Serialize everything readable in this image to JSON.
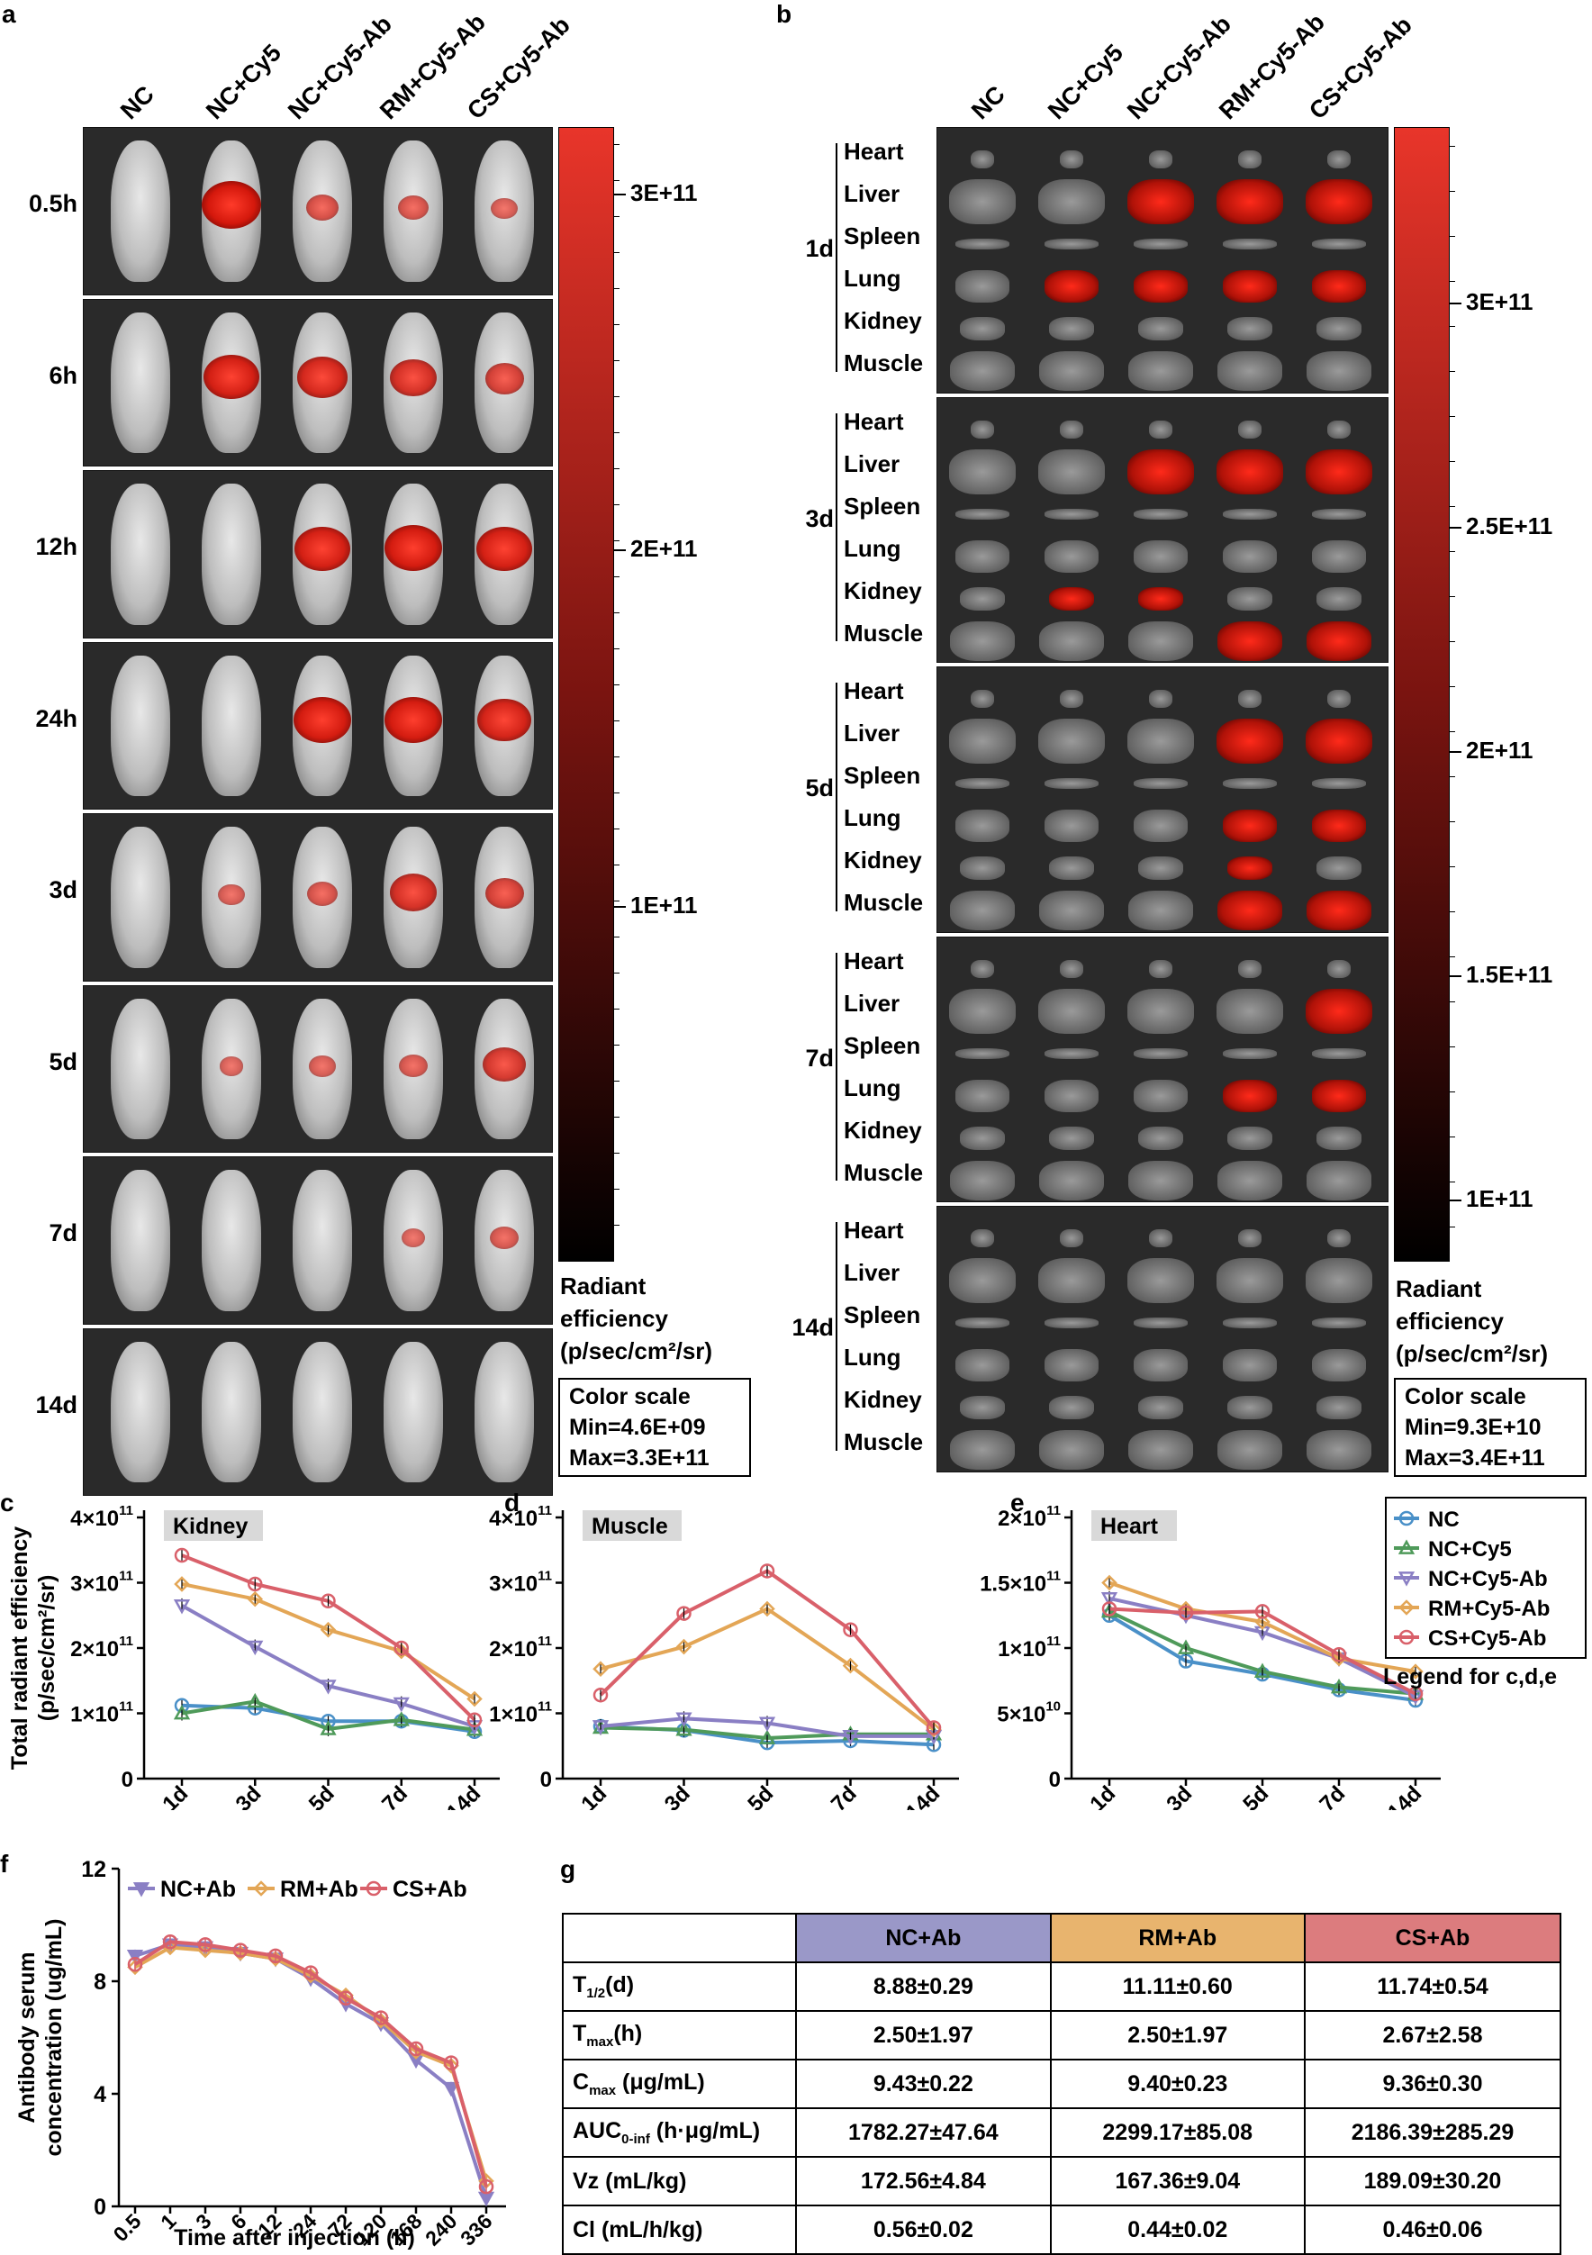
{
  "panel_a": {
    "label": "a",
    "columns": [
      "NC",
      "NC+Cy5",
      "NC+Cy5-Ab",
      "RM+Cy5-Ab",
      "CS+Cy5-Ab"
    ],
    "rows": [
      "0.5h",
      "6h",
      "12h",
      "24h",
      "3d",
      "5d",
      "7d",
      "14d"
    ],
    "colorbar_ticks": [
      "3E+11",
      "2E+11",
      "1E+11"
    ],
    "colorbar_title": [
      "Radiant",
      "efficiency",
      "(p/sec/cm²/sr)"
    ],
    "color_scale": {
      "title": "Color scale",
      "min": "Min=4.6E+09",
      "max": "Max=3.3E+11"
    }
  },
  "panel_b": {
    "label": "b",
    "columns": [
      "NC",
      "NC+Cy5",
      "NC+Cy5-Ab",
      "RM+Cy5-Ab",
      "CS+Cy5-Ab"
    ],
    "rows": [
      "1d",
      "3d",
      "5d",
      "7d",
      "14d"
    ],
    "organs": [
      "Heart",
      "Liver",
      "Spleen",
      "Lung",
      "Kidney",
      "Muscle"
    ],
    "colorbar_ticks": [
      "3E+11",
      "2.5E+11",
      "2E+11",
      "1.5E+11",
      "1E+11"
    ],
    "colorbar_title": [
      "Radiant",
      "efficiency",
      "(p/sec/cm²/sr)"
    ],
    "color_scale": {
      "title": "Color scale",
      "min": "Min=9.3E+10",
      "max": "Max=3.4E+11"
    }
  },
  "legend_cde": {
    "items": [
      "NC",
      "NC+Cy5",
      "NC+Cy5-Ab",
      "RM+Cy5-Ab",
      "CS+Cy5-Ab"
    ],
    "caption": "Legend for c,d,e"
  },
  "colors": {
    "NC": "#4a90c8",
    "NC+Cy5": "#4f9a5a",
    "NC+Cy5-Ab": "#8a7fc4",
    "RM+Cy5-Ab": "#e3a656",
    "CS+Cy5-Ab": "#d9606a"
  },
  "chart_data": [
    {
      "id": "c",
      "label": "c",
      "type": "line",
      "title": "Kidney",
      "ylabel": "Total radiant efficiency (p/sec/cm²/sr)",
      "categories": [
        "1d",
        "3d",
        "5d",
        "7d",
        "14d"
      ],
      "yticks": [
        "0",
        "1×10",
        "2×10",
        "3×10",
        "4×10"
      ],
      "yexp": "11",
      "ylim": [
        0,
        400000000000.0
      ],
      "series": [
        {
          "name": "NC",
          "values": [
            112000000000.0,
            108000000000.0,
            88000000000.0,
            88000000000.0,
            72000000000.0
          ]
        },
        {
          "name": "NC+Cy5",
          "values": [
            100000000000.0,
            118000000000.0,
            76000000000.0,
            90000000000.0,
            75000000000.0
          ]
        },
        {
          "name": "NC+Cy5-Ab",
          "values": [
            265000000000.0,
            202000000000.0,
            142000000000.0,
            115000000000.0,
            80000000000.0
          ]
        },
        {
          "name": "RM+Cy5-Ab",
          "values": [
            298000000000.0,
            275000000000.0,
            228000000000.0,
            195000000000.0,
            122000000000.0
          ]
        },
        {
          "name": "CS+Cy5-Ab",
          "values": [
            342000000000.0,
            298000000000.0,
            272000000000.0,
            200000000000.0,
            90000000000.0
          ]
        }
      ]
    },
    {
      "id": "d",
      "label": "d",
      "type": "line",
      "title": "Muscle",
      "ylabel": "",
      "categories": [
        "1d",
        "3d",
        "5d",
        "7d",
        "14d"
      ],
      "yticks": [
        "0",
        "1×10",
        "2×10",
        "3×10",
        "4×10"
      ],
      "yexp": "11",
      "ylim": [
        0,
        400000000000.0
      ],
      "series": [
        {
          "name": "NC",
          "values": [
            80000000000.0,
            74000000000.0,
            55000000000.0,
            58000000000.0,
            52000000000.0
          ]
        },
        {
          "name": "NC+Cy5",
          "values": [
            78000000000.0,
            75000000000.0,
            62000000000.0,
            68000000000.0,
            68000000000.0
          ]
        },
        {
          "name": "NC+Cy5-Ab",
          "values": [
            80000000000.0,
            92000000000.0,
            85000000000.0,
            65000000000.0,
            65000000000.0
          ]
        },
        {
          "name": "RM+Cy5-Ab",
          "values": [
            168000000000.0,
            202000000000.0,
            260000000000.0,
            173000000000.0,
            75000000000.0
          ]
        },
        {
          "name": "CS+Cy5-Ab",
          "values": [
            128000000000.0,
            253000000000.0,
            318000000000.0,
            228000000000.0,
            78000000000.0
          ]
        }
      ]
    },
    {
      "id": "e",
      "label": "e",
      "type": "line",
      "title": "Heart",
      "ylabel": "",
      "categories": [
        "1d",
        "3d",
        "5d",
        "7d",
        "14d"
      ],
      "yticks": [
        "0",
        "5×10",
        "1×10",
        "1.5×10",
        "2×10"
      ],
      "yexps": [
        "",
        "10",
        "11",
        "11",
        "11"
      ],
      "ylim": [
        0,
        200000000000.0
      ],
      "series": [
        {
          "name": "NC",
          "values": [
            125000000000.0,
            90000000000.0,
            80000000000.0,
            68000000000.0,
            60000000000.0
          ]
        },
        {
          "name": "NC+Cy5",
          "values": [
            128000000000.0,
            100000000000.0,
            82000000000.0,
            70000000000.0,
            65000000000.0
          ]
        },
        {
          "name": "NC+Cy5-Ab",
          "values": [
            138000000000.0,
            125000000000.0,
            112000000000.0,
            92000000000.0,
            63000000000.0
          ]
        },
        {
          "name": "RM+Cy5-Ab",
          "values": [
            150000000000.0,
            130000000000.0,
            120000000000.0,
            92000000000.0,
            82000000000.0
          ]
        },
        {
          "name": "CS+Cy5-Ab",
          "values": [
            130000000000.0,
            127000000000.0,
            128000000000.0,
            95000000000.0,
            65000000000.0
          ]
        }
      ]
    },
    {
      "id": "f",
      "label": "f",
      "type": "line",
      "ylabel": "Antibody serum concentration (ug/mL)",
      "xlabel": "Time after injection (h)",
      "categories": [
        "0.5",
        "1",
        "3",
        "6",
        "12",
        "24",
        "72",
        "120",
        "168",
        "240",
        "336"
      ],
      "yticks": [
        "0",
        "4",
        "8",
        "12"
      ],
      "ylim": [
        0,
        12
      ],
      "series": [
        {
          "name": "NC+Ab",
          "values": [
            8.9,
            9.3,
            9.2,
            9.0,
            8.8,
            8.1,
            7.2,
            6.5,
            5.2,
            4.2,
            0.3
          ]
        },
        {
          "name": "RM+Ab",
          "values": [
            8.5,
            9.2,
            9.1,
            9.0,
            8.8,
            8.2,
            7.5,
            6.6,
            5.5,
            5.0,
            0.9
          ]
        },
        {
          "name": "CS+Ab",
          "values": [
            8.6,
            9.4,
            9.3,
            9.1,
            8.9,
            8.3,
            7.4,
            6.7,
            5.6,
            5.1,
            0.7
          ]
        }
      ],
      "colors": {
        "NC+Ab": "#8a7fc4",
        "RM+Ab": "#e3a656",
        "CS+Ab": "#d9606a"
      }
    }
  ],
  "panel_g": {
    "label": "g",
    "headers": [
      "",
      "NC+Ab",
      "RM+Ab",
      "CS+Ab"
    ],
    "header_colors": [
      "#ffffff",
      "#9a98c8",
      "#e8b46e",
      "#dc7c7e"
    ],
    "rows": [
      {
        "name": "T",
        "sub": "1/2",
        "suffix": "(d)",
        "values": [
          "8.88±0.29",
          "11.11±0.60",
          "11.74±0.54"
        ]
      },
      {
        "name": "T",
        "sub": "max",
        "suffix": "(h)",
        "values": [
          "2.50±1.97",
          "2.50±1.97",
          "2.67±2.58"
        ]
      },
      {
        "name": "C",
        "sub": "max",
        "suffix": " (μg/mL)",
        "values": [
          "9.43±0.22",
          "9.40±0.23",
          "9.36±0.30"
        ]
      },
      {
        "name": "AUC",
        "sub": "0-inf",
        "suffix": " (h·μg/mL)",
        "values": [
          "1782.27±47.64",
          "2299.17±85.08",
          "2186.39±285.29"
        ]
      },
      {
        "name": "Vz (mL/kg)",
        "sub": "",
        "suffix": "",
        "values": [
          "172.56±4.84",
          "167.36±9.04",
          "189.09±30.20"
        ]
      },
      {
        "name": "Cl (mL/h/kg)",
        "sub": "",
        "suffix": "",
        "values": [
          "0.56±0.02",
          "0.44±0.02",
          "0.46±0.06"
        ]
      }
    ]
  }
}
